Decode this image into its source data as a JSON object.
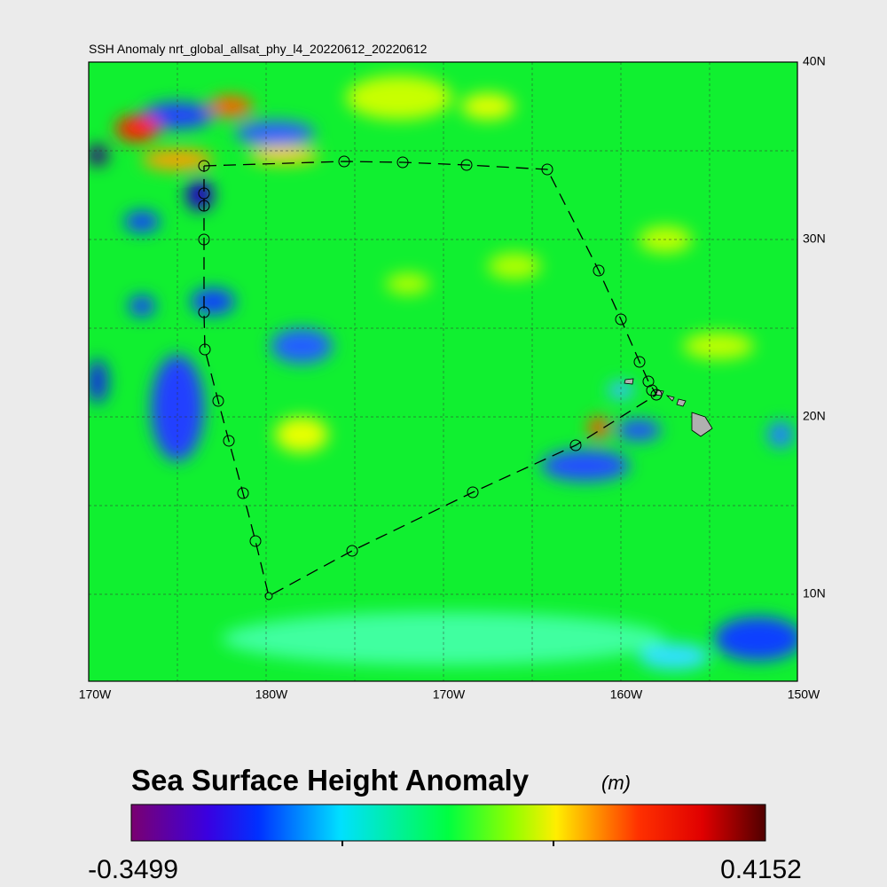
{
  "map": {
    "title": "SSH Anomaly nrt_global_allsat_phy_l4_20220612_20220612",
    "lat_labels": [
      "40N",
      "30N",
      "20N",
      "10N"
    ],
    "lon_labels": [
      "170W",
      "180W",
      "170W",
      "160W",
      "150W"
    ],
    "colorbar": {
      "title": "Sea Surface Height Anomaly",
      "unit": "(m)",
      "min_label": "-0.3499",
      "max_label": "0.4152"
    }
  }
}
